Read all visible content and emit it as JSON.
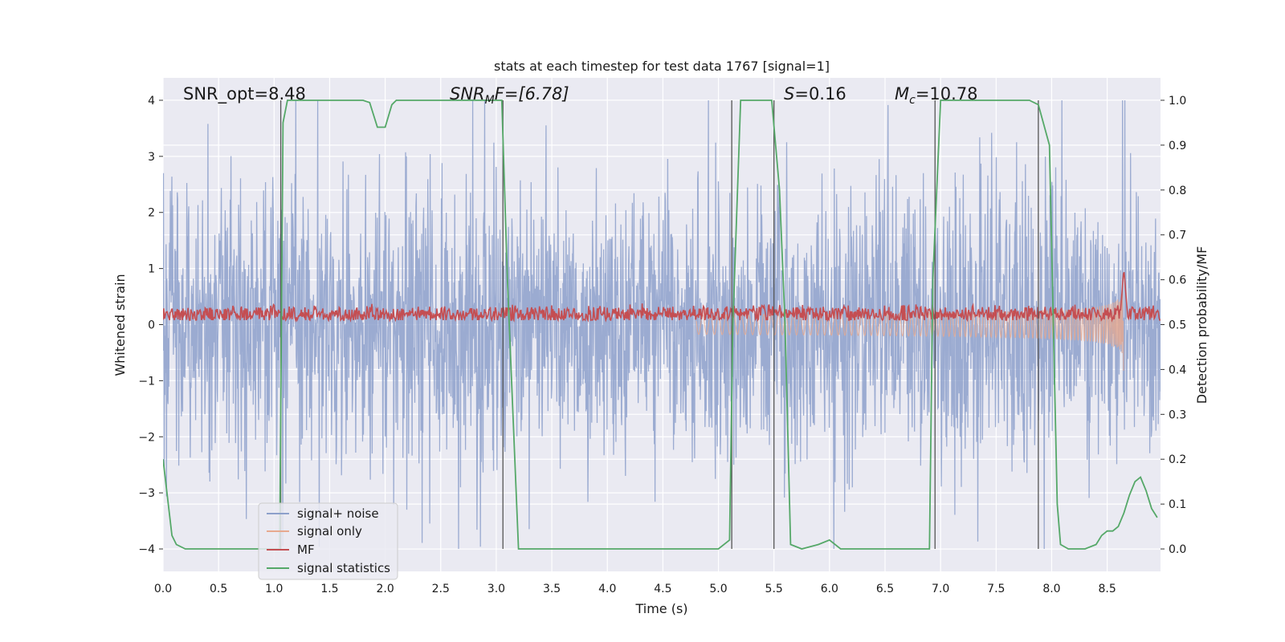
{
  "chart_data": {
    "type": "line",
    "title": "stats at each timestep for test data 1767 [signal=1]",
    "xlabel": "Time (s)",
    "ylabel_left": "Whitened strain",
    "ylabel_right": "Detection probability/MF",
    "xlim": [
      0.0,
      8.98
    ],
    "ylim_left": [
      -4.4,
      4.4
    ],
    "ylim_right": [
      -0.05,
      1.05
    ],
    "xticks": [
      0.0,
      0.5,
      1.0,
      1.5,
      2.0,
      2.5,
      3.0,
      3.5,
      4.0,
      4.5,
      5.0,
      5.5,
      6.0,
      6.5,
      7.0,
      7.5,
      8.0,
      8.5
    ],
    "xtick_labels": [
      "0.0",
      "0.5",
      "1.0",
      "1.5",
      "2.0",
      "2.5",
      "3.0",
      "3.5",
      "4.0",
      "4.5",
      "5.0",
      "5.5",
      "6.0",
      "6.5",
      "7.0",
      "7.5",
      "8.0",
      "8.5"
    ],
    "yticks_left": [
      -4,
      -3,
      -2,
      -1,
      0,
      1,
      2,
      3,
      4
    ],
    "ytick_labels_left": [
      "−4",
      "−3",
      "−2",
      "−1",
      "0",
      "1",
      "2",
      "3",
      "4"
    ],
    "yticks_right": [
      0.0,
      0.1,
      0.2,
      0.3,
      0.4,
      0.5,
      0.6,
      0.7,
      0.8,
      0.9,
      1.0
    ],
    "ytick_labels_right": [
      "0.0",
      "0.1",
      "0.2",
      "0.3",
      "0.4",
      "0.5",
      "0.6",
      "0.7",
      "0.8",
      "0.9",
      "1.0"
    ],
    "annotations": {
      "snr_opt": "SNR_opt=8.48",
      "snr_mf_base": "SNR",
      "snr_mf_sub": "M",
      "snr_mf_rest": "F=[6.78]",
      "s_sym": "S",
      "s_rest": "=0.16",
      "mc_base": "M",
      "mc_sub": "c",
      "mc_rest": "=10.78"
    },
    "legend": {
      "location": "lower-left",
      "entries": [
        {
          "label": "signal+ noise",
          "color": "#8da0cb"
        },
        {
          "label": "signal only",
          "color": "#e7a98f"
        },
        {
          "label": "MF",
          "color": "#c44e52"
        },
        {
          "label": "signal statistics",
          "color": "#55a868"
        }
      ]
    },
    "colors": {
      "background": "#eaeaf2",
      "grid": "#ffffff",
      "noise": "#8da0cb",
      "signal": "#e7a98f",
      "mf": "#c44e52",
      "stats": "#55a868",
      "vline": "#555555"
    },
    "noise_series": {
      "name": "signal+ noise",
      "envelope_typical": 2.2,
      "envelope_peak": 4.0
    },
    "signal_series": {
      "name": "signal only",
      "chirp_start": 4.8,
      "merger_time": 8.65,
      "peak_amplitude": 1.3
    },
    "mf_series": {
      "name": "MF",
      "baseline": 0.08,
      "mean": 0.19,
      "spread": 0.15,
      "peak_time": 8.65,
      "peak_value": 1.0
    },
    "vertical_lines": [
      {
        "x": 1.06,
        "y0": -4.0,
        "y1": 4.0
      },
      {
        "x": 3.06,
        "y0": -4.0,
        "y1": 4.0
      },
      {
        "x": 5.12,
        "y0": -4.0,
        "y1": 4.0
      },
      {
        "x": 5.5,
        "y0": -4.0,
        "y1": 4.0
      },
      {
        "x": 6.95,
        "y0": -4.0,
        "y1": 4.0
      },
      {
        "x": 7.88,
        "y0": -4.0,
        "y1": 4.0
      }
    ],
    "stats_series": {
      "name": "signal statistics",
      "x": [
        0.0,
        0.08,
        0.12,
        0.2,
        0.3,
        0.5,
        0.8,
        1.0,
        1.05,
        1.08,
        1.12,
        1.2,
        1.4,
        1.6,
        1.8,
        1.86,
        1.93,
        2.0,
        2.06,
        2.1,
        2.3,
        2.6,
        2.9,
        3.05,
        3.1,
        3.2,
        3.3,
        3.5,
        4.0,
        4.5,
        5.0,
        5.1,
        5.13,
        5.2,
        5.4,
        5.48,
        5.55,
        5.6,
        5.65,
        5.75,
        5.9,
        6.0,
        6.1,
        6.3,
        6.6,
        6.9,
        6.93,
        7.0,
        7.2,
        7.5,
        7.8,
        7.88,
        7.98,
        8.05,
        8.08,
        8.15,
        8.3,
        8.4,
        8.45,
        8.5,
        8.55,
        8.6,
        8.65,
        8.7,
        8.75,
        8.8,
        8.85,
        8.9,
        8.95
      ],
      "values": [
        0.2,
        0.03,
        0.01,
        0.0,
        0.0,
        0.0,
        0.0,
        0.0,
        0.0,
        0.95,
        1.0,
        1.0,
        1.0,
        1.0,
        1.0,
        0.995,
        0.94,
        0.94,
        0.99,
        1.0,
        1.0,
        1.0,
        1.0,
        1.0,
        0.6,
        0.0,
        0.0,
        0.0,
        0.0,
        0.0,
        0.0,
        0.02,
        0.5,
        1.0,
        1.0,
        1.0,
        0.8,
        0.5,
        0.01,
        0.0,
        0.01,
        0.02,
        0.0,
        0.0,
        0.0,
        0.0,
        0.6,
        1.0,
        1.0,
        1.0,
        1.0,
        0.99,
        0.9,
        0.1,
        0.01,
        0.0,
        0.0,
        0.01,
        0.03,
        0.04,
        0.04,
        0.05,
        0.08,
        0.12,
        0.15,
        0.16,
        0.13,
        0.09,
        0.07
      ]
    }
  }
}
